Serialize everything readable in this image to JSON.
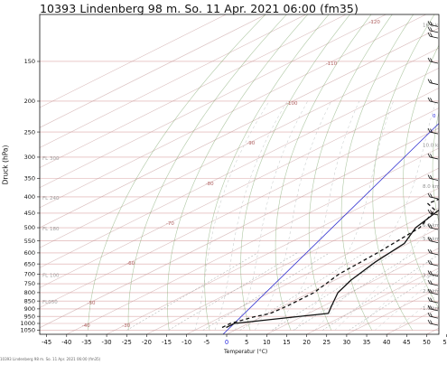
{
  "chart_data": {
    "type": "line",
    "title": "10393 Lindenberg 98 m. So. 11 Apr. 2021 06:00 (fm35)",
    "xlabel": "Temperatur (°C)",
    "ylabel": "Druck (hPa)",
    "x_ticks": [
      "-45",
      "-40",
      "-35",
      "-30",
      "-25",
      "-20",
      "-15",
      "-10",
      "-5",
      "0",
      "5",
      "10",
      "15",
      "20",
      "25",
      "30",
      "35",
      "40",
      "45",
      "50",
      "55"
    ],
    "xlim": [
      -48,
      57
    ],
    "y_ticks": [
      "150",
      "200",
      "250",
      "300",
      "350",
      "400",
      "450",
      "500",
      "550",
      "600",
      "650",
      "700",
      "750",
      "800",
      "850",
      "900",
      "950",
      "1000",
      "1050"
    ],
    "ylim": [
      100,
      1050
    ],
    "y_scale": "log",
    "isotherm_labels": [
      "-120",
      "-110",
      "-100",
      "-90",
      "-80",
      "-70",
      "-60",
      "-50",
      "-40",
      "-30"
    ],
    "flight_levels": [
      "FL 300",
      "FL 240",
      "FL 180",
      "FL 100",
      "FL050"
    ],
    "height_labels": [
      "16.0 km",
      "10.0 km",
      "8.0 km",
      "6.0 km",
      "5.0 km",
      "3.0 km",
      "2.0 km",
      "1.0 km"
    ],
    "freezing_level_label": "0",
    "series": [
      {
        "style": "solid",
        "color": "#111111",
        "points": [
          [
            -3.5,
            1030
          ],
          [
            -3.5,
            1000
          ],
          [
            8,
            955
          ],
          [
            15,
            930
          ],
          [
            12,
            880
          ],
          [
            7,
            800
          ],
          [
            4,
            730
          ],
          [
            1,
            640
          ],
          [
            -1,
            560
          ],
          [
            -6,
            500
          ],
          [
            -9,
            440
          ],
          [
            -13,
            400
          ],
          [
            -17,
            350
          ],
          [
            -22,
            300
          ],
          [
            -26,
            250
          ],
          [
            -28,
            240
          ],
          [
            -16,
            200
          ],
          [
            -1,
            150
          ],
          [
            10,
            110
          ],
          [
            13,
            100
          ]
        ]
      },
      {
        "style": "dashed",
        "color": "#111111",
        "points": [
          [
            -4.5,
            1030
          ],
          [
            -4.5,
            1000
          ],
          [
            -2,
            955
          ],
          [
            0.5,
            930
          ],
          [
            1,
            880
          ],
          [
            1,
            800
          ],
          [
            -2,
            700
          ],
          [
            -3,
            600
          ],
          [
            -5,
            500
          ],
          [
            -10,
            440
          ],
          [
            -15,
            420
          ],
          [
            -13,
            370
          ],
          [
            -20,
            360
          ],
          [
            -23,
            330
          ],
          [
            -20,
            320
          ],
          [
            -22,
            300
          ],
          [
            -18,
            250
          ],
          [
            -19,
            220
          ],
          [
            -22,
            210
          ],
          [
            -18,
            190
          ],
          [
            -16,
            150
          ],
          [
            -10,
            120
          ],
          [
            -5,
            100
          ]
        ]
      }
    ],
    "parcel_line_color": "#3030d0",
    "isotherm_color": "#c09090",
    "isobar_color": "#c06060",
    "dry_adiabat_color": "#6e9a5a",
    "mixing_ratio_color": "#9aa0a0",
    "wind_barb_color": "#111111",
    "grid": true
  },
  "footer": "10393 Lindenberg 98 m. So. 11 Apr. 2021 06:00 (fm35)"
}
